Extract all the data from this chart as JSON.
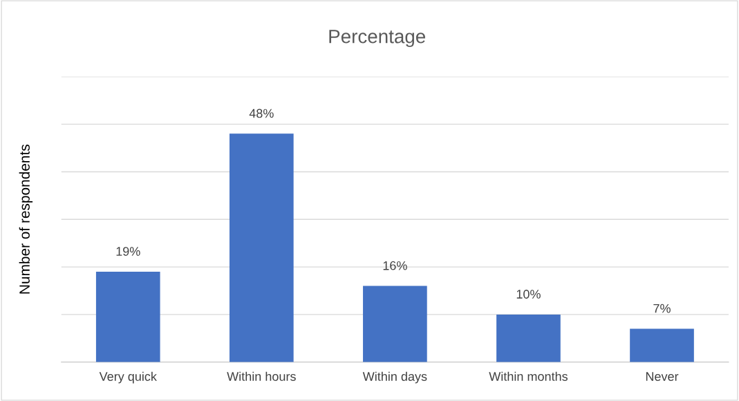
{
  "chart_data": {
    "type": "bar",
    "title": "Percentage",
    "ylabel": "Number of respondents",
    "categories": [
      "Very quick",
      "Within hours",
      "Within days",
      "Within months",
      "Never"
    ],
    "values": [
      19,
      48,
      16,
      10,
      7
    ],
    "color": "#4472c4",
    "value_labels": [
      "19%",
      "48%",
      "16%",
      "10%",
      "7%"
    ],
    "ylim": [
      0,
      60
    ],
    "yticks": [
      {
        "value": 0,
        "label": null
      },
      {
        "value": 10,
        "label": null
      },
      {
        "value": 20,
        "label": null
      },
      {
        "value": 30,
        "label": null
      },
      {
        "value": 40,
        "label": null
      },
      {
        "value": 50,
        "label": null
      },
      {
        "value": 60,
        "label": null
      }
    ],
    "grid": "y",
    "tick_labels": "x",
    "legend": false
  }
}
